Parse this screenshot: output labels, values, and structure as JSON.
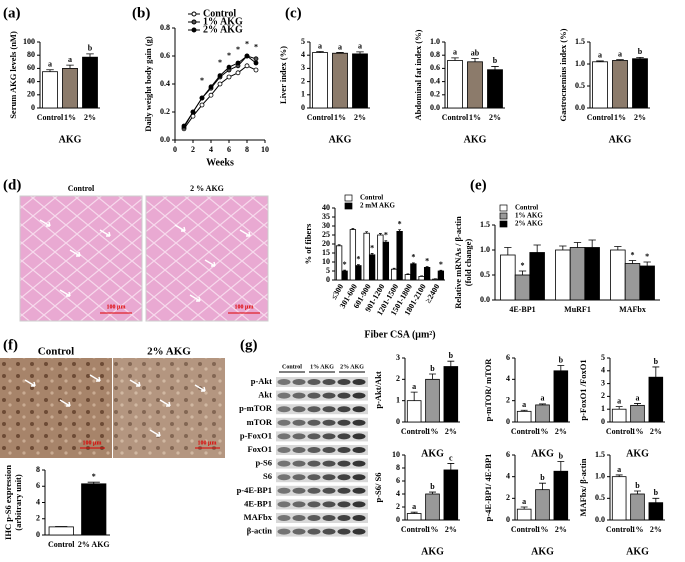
{
  "panel_labels": [
    "(a)",
    "(b)",
    "(c)",
    "(d)",
    "(e)",
    "(f)",
    "(g)"
  ],
  "histology": {
    "labels": [
      "Control",
      "2 % AKG"
    ],
    "scale": "100 μm"
  },
  "ihc": {
    "labels": [
      "Control",
      "2% AKG"
    ],
    "scale": "100 μm"
  },
  "blots": {
    "lanes": [
      "Control",
      "1% AKG",
      "2% AKG"
    ],
    "rows": [
      "p-Akt",
      "Akt",
      "p-mTOR",
      "mTOR",
      "p-FoxO1",
      "FoxO1",
      "p-S6",
      "S6",
      "p-4E-BP1",
      "4E-BP1",
      "MAFbx",
      "β-actin"
    ]
  },
  "chart_data": [
    {
      "type": "bar",
      "ylabel": "Serum AKG levels (nM)",
      "xlabel": "AKG",
      "categories": [
        "Control",
        "1%",
        "2%"
      ],
      "series": [
        {
          "values": [
            55,
            60,
            77
          ],
          "errors": [
            3,
            5,
            5
          ],
          "colors": [
            "#ffffff",
            "#8c7b6b",
            "#000000"
          ],
          "annotations": [
            "a",
            "a",
            "b"
          ]
        }
      ],
      "ylim": [
        0,
        100
      ],
      "yticks": [
        0,
        20,
        40,
        60,
        80,
        100
      ]
    },
    {
      "type": "line",
      "ylabel": "Daily weight body gain (g)",
      "xlabel": "Weeks",
      "x": [
        1,
        2,
        3,
        4,
        5,
        6,
        7,
        8,
        9
      ],
      "series": [
        {
          "name": "Control",
          "color": "#000000",
          "fill": "#ffffff",
          "values": [
            0.08,
            0.17,
            0.25,
            0.32,
            0.4,
            0.45,
            0.48,
            0.53,
            0.5
          ]
        },
        {
          "name": "1% AKG",
          "color": "#000000",
          "fill": "#555555",
          "values": [
            0.09,
            0.2,
            0.3,
            0.37,
            0.45,
            0.5,
            0.53,
            0.6,
            0.58
          ]
        },
        {
          "name": "2% AKG",
          "color": "#000000",
          "fill": "#000000",
          "values": [
            0.1,
            0.2,
            0.3,
            0.38,
            0.46,
            0.52,
            0.55,
            0.6,
            0.55
          ]
        }
      ],
      "annotations": [
        {
          "text": "*",
          "x": 3,
          "y": 0.42
        },
        {
          "text": "*",
          "x": 5,
          "y": 0.55
        },
        {
          "text": "*",
          "x": 6,
          "y": 0.6
        },
        {
          "text": "*",
          "x": 7,
          "y": 0.64
        },
        {
          "text": "*",
          "x": 8,
          "y": 0.68
        },
        {
          "text": "*",
          "x": 9,
          "y": 0.66
        }
      ],
      "xlim": [
        0,
        10
      ],
      "xticks": [
        0,
        2,
        4,
        6,
        8,
        10
      ],
      "ylim": [
        0,
        0.8
      ],
      "yticks": [
        {
          "value": 0,
          "label": "0.0"
        },
        0.2,
        0.4,
        0.6,
        0.8
      ]
    },
    {
      "type": "bar",
      "ylabel": "Liver index (%)",
      "xlabel": "AKG",
      "categories": [
        "Control",
        "1%",
        "2%"
      ],
      "series": [
        {
          "values": [
            4.2,
            4.15,
            4.1
          ],
          "errors": [
            0.08,
            0.06,
            0.15
          ],
          "colors": [
            "#ffffff",
            "#8c7b6b",
            "#000000"
          ],
          "annotations": [
            "a",
            "a",
            "a"
          ]
        }
      ],
      "ylim": [
        0,
        5
      ],
      "yticks": [
        0,
        1,
        2,
        3,
        4,
        5
      ]
    },
    {
      "type": "bar",
      "ylabel": "Abdominal fat index  (%)",
      "xlabel": "AKG",
      "categories": [
        "Control",
        "1%",
        "2%"
      ],
      "series": [
        {
          "values": [
            0.72,
            0.7,
            0.58
          ],
          "errors": [
            0.04,
            0.05,
            0.05
          ],
          "colors": [
            "#ffffff",
            "#8c7b6b",
            "#000000"
          ],
          "annotations": [
            "a",
            "ab",
            "b"
          ]
        }
      ],
      "ylim": [
        0,
        1
      ],
      "yticks": [
        {
          "value": 0,
          "label": "0.0"
        },
        0.2,
        0.4,
        0.6,
        0.8,
        {
          "value": 1,
          "label": "1.0"
        }
      ]
    },
    {
      "type": "bar",
      "ylabel": "Gastrocnemius index (%)",
      "xlabel": "AKG",
      "categories": [
        "Control",
        "1%",
        "2%"
      ],
      "series": [
        {
          "values": [
            1.05,
            1.08,
            1.12
          ],
          "errors": [
            0.02,
            0.02,
            0.03
          ],
          "colors": [
            "#ffffff",
            "#8c7b6b",
            "#000000"
          ],
          "annotations": [
            "a",
            "a",
            "b"
          ]
        }
      ],
      "ylim": [
        0,
        1.5
      ],
      "yticks": [
        {
          "value": 0,
          "label": "0.0"
        },
        0.5,
        {
          "value": 1,
          "label": "1.0"
        },
        1.5
      ]
    },
    {
      "type": "bar",
      "ylabel": "% of fibers",
      "xlabel": "Fiber CSA (μm²)",
      "rotate": true,
      "categories": [
        "≤300",
        "301-600",
        "601-900",
        "901-1200",
        "1201-1500",
        "1501-1800",
        "1801-2100",
        "≥2400"
      ],
      "series": [
        {
          "name": "Control",
          "color": "#ffffff",
          "values": [
            19,
            28,
            26,
            25,
            6,
            3,
            2,
            0.5
          ],
          "errors": [
            0.6,
            0.6,
            0.8,
            0.8,
            0.5,
            0.4,
            0.3,
            0.2
          ]
        },
        {
          "name": "2 mM AKG",
          "color": "#000000",
          "values": [
            5,
            8,
            14,
            21,
            27,
            9,
            7,
            5
          ],
          "errors": [
            0.5,
            0.5,
            0.7,
            0.8,
            0.9,
            0.5,
            0.4,
            0.4
          ],
          "annotations": [
            "*",
            "*",
            "*",
            "*",
            "*",
            "*",
            "*",
            "*"
          ]
        }
      ],
      "ylim": [
        0,
        40
      ],
      "yticks": [
        0,
        5,
        10,
        15,
        20,
        25,
        30,
        35,
        40
      ]
    },
    {
      "type": "bar",
      "ylabel": [
        "Relative mRNAs / β-actin",
        "(fold change)"
      ],
      "categories": [
        "4E-BP1",
        "MuRF1",
        "MAFbx"
      ],
      "series": [
        {
          "name": "Control",
          "color": "#ffffff",
          "values": [
            0.9,
            1.0,
            1.0
          ],
          "errors": [
            0.15,
            0.08,
            0.07
          ]
        },
        {
          "name": "1% AKG",
          "color": "#999999",
          "values": [
            0.5,
            1.05,
            0.73
          ],
          "errors": [
            0.08,
            0.1,
            0.06
          ],
          "annotations": [
            "*",
            null,
            "*"
          ]
        },
        {
          "name": "2% AKG",
          "color": "#000000",
          "values": [
            0.95,
            1.05,
            0.68
          ],
          "errors": [
            0.15,
            0.15,
            0.08
          ],
          "annotations": [
            null,
            null,
            "*"
          ]
        }
      ],
      "ylim": [
        0,
        1.5
      ],
      "yticks": [
        {
          "value": 0,
          "label": "0.0"
        },
        0.5,
        {
          "value": 1,
          "label": "1.0"
        },
        1.5
      ]
    },
    {
      "type": "bar",
      "ylabel": [
        "IHC p-S6 expression",
        "(arbitrary unit)"
      ],
      "categories": [
        "Control",
        "2% AKG"
      ],
      "series": [
        {
          "values": [
            1,
            6.3
          ],
          "errors": [
            0.05,
            0.2
          ],
          "colors": [
            "#ffffff",
            "#000000"
          ],
          "annotations": [
            null,
            "*"
          ]
        }
      ],
      "ylim": [
        0,
        8
      ],
      "yticks": [
        0,
        2,
        4,
        6,
        8
      ]
    },
    {
      "type": "bar",
      "ylabel": "p-Akt/Akt",
      "xlabel": "AKG",
      "categories": [
        "Control",
        "1%",
        "2%"
      ],
      "series": [
        {
          "values": [
            1,
            2,
            2.6
          ],
          "errors": [
            0.4,
            0.25,
            0.25
          ],
          "colors": [
            "#ffffff",
            "#999999",
            "#000000"
          ],
          "annotations": [
            "a",
            "b",
            "b"
          ]
        }
      ],
      "ylim": [
        0,
        3
      ],
      "yticks": [
        0,
        1,
        2,
        3
      ]
    },
    {
      "type": "bar",
      "ylabel": "p-mTOR/ mTOR",
      "xlabel": "AKG",
      "categories": [
        "Control",
        "1%",
        "2%"
      ],
      "series": [
        {
          "values": [
            1,
            1.6,
            4.8
          ],
          "errors": [
            0.1,
            0.1,
            0.5
          ],
          "colors": [
            "#ffffff",
            "#999999",
            "#000000"
          ],
          "annotations": [
            "a",
            "a",
            "b"
          ]
        }
      ],
      "ylim": [
        0,
        6
      ],
      "yticks": [
        0,
        2,
        4,
        6
      ]
    },
    {
      "type": "bar",
      "ylabel": "p-FoxO1 /FoxO1",
      "xlabel": "AKG",
      "categories": [
        "Control",
        "1%",
        "2%"
      ],
      "series": [
        {
          "values": [
            1,
            1.3,
            3.5
          ],
          "errors": [
            0.2,
            0.15,
            0.8
          ],
          "colors": [
            "#ffffff",
            "#999999",
            "#000000"
          ],
          "annotations": [
            "a",
            "a",
            "b"
          ]
        }
      ],
      "ylim": [
        0,
        5
      ],
      "yticks": [
        0,
        1,
        2,
        3,
        4,
        5
      ]
    },
    {
      "type": "bar",
      "ylabel": "p-S6/ S6",
      "xlabel": "AKG",
      "categories": [
        "Control",
        "1%",
        "2%"
      ],
      "series": [
        {
          "values": [
            1,
            4,
            7.7
          ],
          "errors": [
            0.2,
            0.3,
            1
          ],
          "colors": [
            "#ffffff",
            "#999999",
            "#000000"
          ],
          "annotations": [
            "a",
            "b",
            "c"
          ]
        }
      ],
      "ylim": [
        0,
        10
      ],
      "yticks": [
        0,
        2,
        4,
        6,
        8,
        10
      ]
    },
    {
      "type": "bar",
      "ylabel": "p-4E-BP1/ 4E-BP1",
      "xlabel": "AKG",
      "categories": [
        "Control",
        "1%",
        "2%"
      ],
      "series": [
        {
          "values": [
            1,
            2.8,
            4.5
          ],
          "errors": [
            0.2,
            0.6,
            0.9
          ],
          "colors": [
            "#ffffff",
            "#999999",
            "#000000"
          ],
          "annotations": [
            "a",
            "b",
            "b"
          ]
        }
      ],
      "ylim": [
        0,
        6
      ],
      "yticks": [
        0,
        2,
        4,
        6
      ]
    },
    {
      "type": "bar",
      "ylabel": "MAFbx/ β-actin",
      "xlabel": "AKG",
      "categories": [
        "Control",
        "1%",
        "2%"
      ],
      "series": [
        {
          "values": [
            1,
            0.6,
            0.4
          ],
          "errors": [
            0.04,
            0.07,
            0.1
          ],
          "colors": [
            "#ffffff",
            "#999999",
            "#000000"
          ],
          "annotations": [
            "a",
            "b",
            "b"
          ]
        }
      ],
      "ylim": [
        0,
        1.5
      ],
      "yticks": [
        {
          "value": 0,
          "label": "0.0"
        },
        0.5,
        {
          "value": 1,
          "label": "1.0"
        },
        1.5
      ]
    }
  ]
}
